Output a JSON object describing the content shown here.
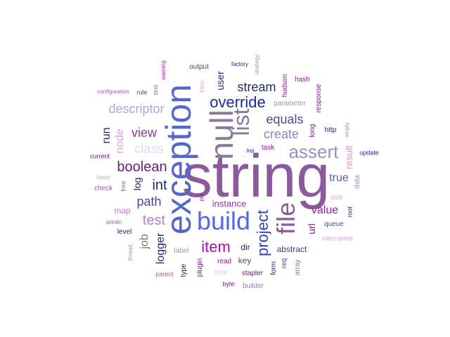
{
  "colors": {
    "background": "#ffffff",
    "purple": "#8a5a9a",
    "blue": "#5566cc",
    "navy": "#1e2a6e",
    "magenta": "#b020a0",
    "lavender": "#a0a8e8",
    "pink": "#d890d8",
    "gray": "#999999",
    "violet": "#7a3a8a"
  },
  "words": [
    {
      "text": "string",
      "color": "#8a5a9a"
    },
    {
      "text": "exception",
      "color": "#5566cc"
    },
    {
      "text": "build",
      "color": "#5566ee"
    },
    {
      "text": "null",
      "color": "#8a7a9a"
    },
    {
      "text": "file",
      "color": "#8a5a9a"
    },
    {
      "text": "list",
      "color": "#8a7a9a"
    },
    {
      "text": "assert",
      "color": "#9a90c0"
    },
    {
      "text": "override",
      "color": "#1a2aa0"
    },
    {
      "text": "item",
      "color": "#aa10aa"
    },
    {
      "text": "project",
      "color": "#3040b0"
    },
    {
      "text": "stream",
      "color": "#1e2a6e"
    },
    {
      "text": "descriptor",
      "color": "#a0a8e8"
    },
    {
      "text": "equals",
      "color": "#4a4a8a"
    },
    {
      "text": "create",
      "color": "#8a88c0"
    },
    {
      "text": "view",
      "color": "#8a3a9a"
    },
    {
      "text": "class",
      "color": "#d8d8f0"
    },
    {
      "text": "boolean",
      "color": "#6a1a7a"
    },
    {
      "text": "int",
      "color": "#1e2a6e"
    },
    {
      "text": "path",
      "color": "#4a4a8a"
    },
    {
      "text": "test",
      "color": "#b080d0"
    },
    {
      "text": "value",
      "color": "#aa10aa"
    },
    {
      "text": "true",
      "color": "#4a60c8"
    },
    {
      "text": "instance",
      "color": "#8a3a9a"
    },
    {
      "text": "user",
      "color": "#1e2a6e"
    },
    {
      "text": "node",
      "color": "#e0a0e0"
    },
    {
      "text": "run",
      "color": "#1e2a6e"
    },
    {
      "text": "log",
      "color": "#1e2a6e"
    },
    {
      "text": "logger",
      "color": "#1e2a6e"
    },
    {
      "text": "job",
      "color": "#777777"
    },
    {
      "text": "url",
      "color": "#6a1a7a"
    },
    {
      "text": "result",
      "color": "#e090d0"
    },
    {
      "text": "dir",
      "color": "#1e2a6e"
    },
    {
      "text": "key",
      "color": "#5a5a5a"
    },
    {
      "text": "abstract",
      "color": "#3a3a8a"
    },
    {
      "text": "map",
      "color": "#d070d0"
    },
    {
      "text": "output",
      "color": "#4a4a6a"
    },
    {
      "text": "hudson",
      "color": "#9a10aa"
    },
    {
      "text": "parameter",
      "color": "#999999"
    },
    {
      "text": "response",
      "color": "#9a10aa"
    },
    {
      "text": "long",
      "color": "#6a1a7a"
    },
    {
      "text": "hash",
      "color": "#9a10aa"
    },
    {
      "text": "task",
      "color": "#aa10aa"
    },
    {
      "text": "data",
      "color": "#9a90c0"
    },
    {
      "text": "http",
      "color": "#1e2a6e"
    },
    {
      "text": "queue",
      "color": "#4a4a8a"
    },
    {
      "text": "label",
      "color": "#999999"
    },
    {
      "text": "form",
      "color": "#1e2a6e"
    },
    {
      "text": "req",
      "color": "#4a4a8a"
    },
    {
      "text": "array",
      "color": "#7a7aa0"
    },
    {
      "text": "size",
      "color": "#e0a0e0"
    },
    {
      "text": "root",
      "color": "#1e2a6e"
    },
    {
      "text": "interrupted",
      "color": "#e0a0e0"
    },
    {
      "text": "plugin",
      "color": "#6a1a7a"
    },
    {
      "text": "type",
      "color": "#1e2a6e"
    },
    {
      "text": "read",
      "color": "#aa10aa"
    },
    {
      "text": "stapler",
      "color": "#6a1a7a"
    },
    {
      "text": "time",
      "color": "#e8c8e8"
    },
    {
      "text": "byte",
      "color": "#6a1a7a"
    },
    {
      "text": "builder",
      "color": "#7a88c8"
    },
    {
      "text": "parent",
      "color": "#9a5a9a"
    },
    {
      "text": "check",
      "color": "#9a5a9a"
    },
    {
      "text": "free",
      "color": "#777777"
    },
    {
      "text": "base",
      "color": "#bbbbbb"
    },
    {
      "text": "current",
      "color": "#7a0a6a"
    },
    {
      "text": "level",
      "color": "#1e2a6e"
    },
    {
      "text": "println",
      "color": "#9a5a9a"
    },
    {
      "text": "thread",
      "color": "#999999"
    },
    {
      "text": "configuration",
      "color": "#9a5a9a"
    },
    {
      "text": "rule",
      "color": "#4a4a6a"
    },
    {
      "text": "text",
      "color": "#7a7a9a"
    },
    {
      "text": "warning",
      "color": "#aa10aa"
    },
    {
      "text": "filter",
      "color": "#e0a8e0"
    },
    {
      "text": "factory",
      "color": "#1a2aa0"
    },
    {
      "text": "strategy",
      "color": "#999999"
    },
    {
      "text": "empty",
      "color": "#999999"
    },
    {
      "text": "top",
      "color": "#1e2a6e"
    },
    {
      "text": "update",
      "color": "#1a2aa0"
    },
    {
      "text": "put",
      "color": "#9a10aa"
    }
  ]
}
